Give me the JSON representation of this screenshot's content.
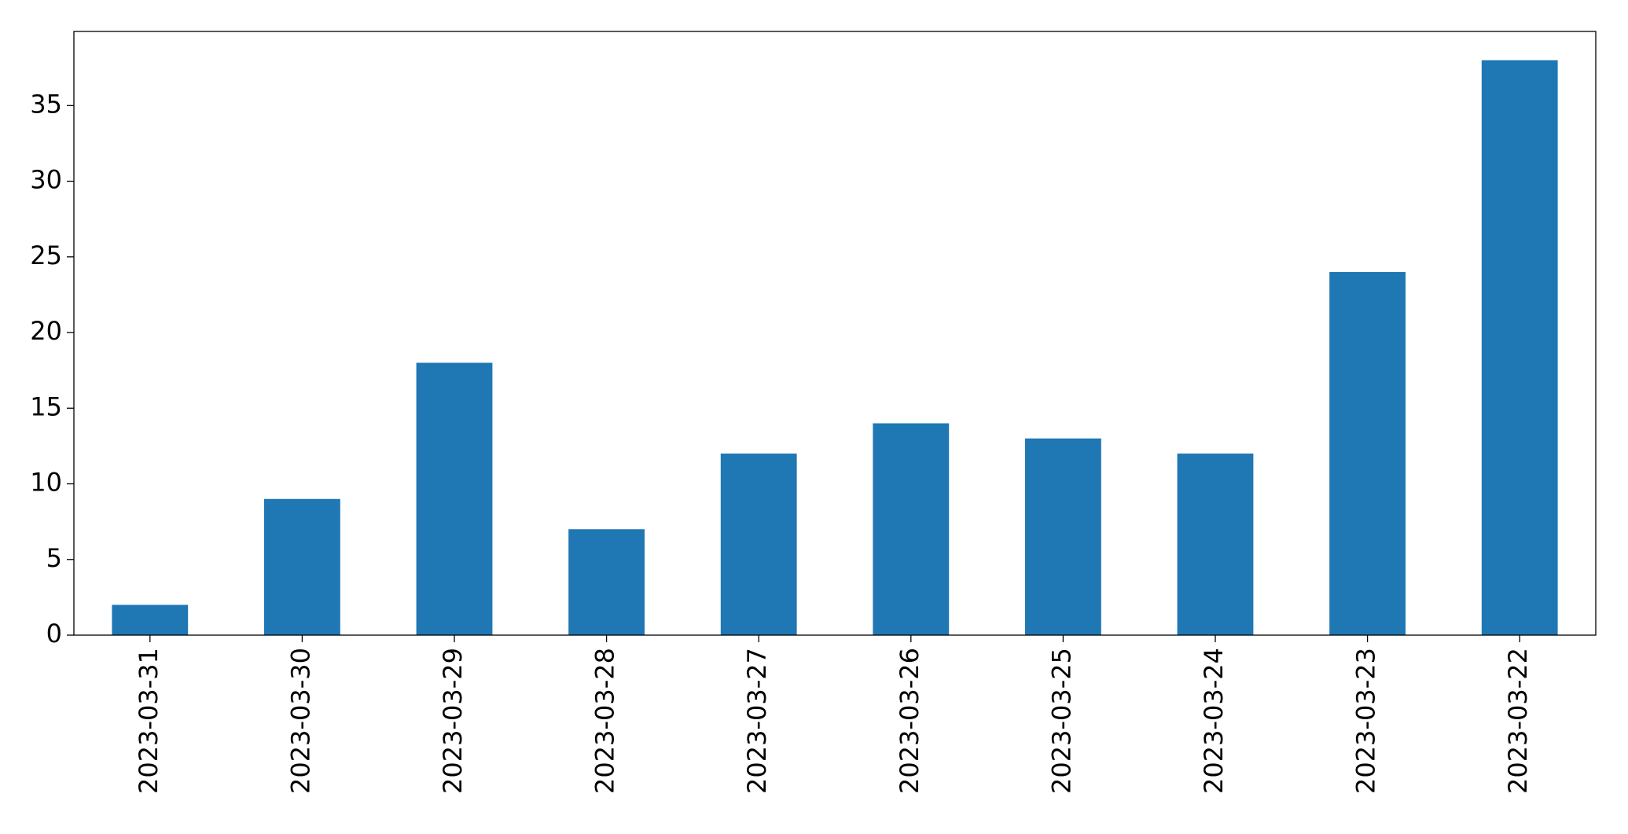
{
  "chart_data": {
    "type": "bar",
    "categories": [
      "2023-03-31",
      "2023-03-30",
      "2023-03-29",
      "2023-03-28",
      "2023-03-27",
      "2023-03-26",
      "2023-03-25",
      "2023-03-24",
      "2023-03-23",
      "2023-03-22"
    ],
    "values": [
      2,
      9,
      18,
      7,
      12,
      14,
      13,
      12,
      24,
      38
    ],
    "color": "#1f77b4",
    "ylim": [
      0,
      39.9
    ],
    "yticks": [
      0,
      5,
      10,
      15,
      20,
      25,
      30,
      35
    ],
    "grid": false
  }
}
